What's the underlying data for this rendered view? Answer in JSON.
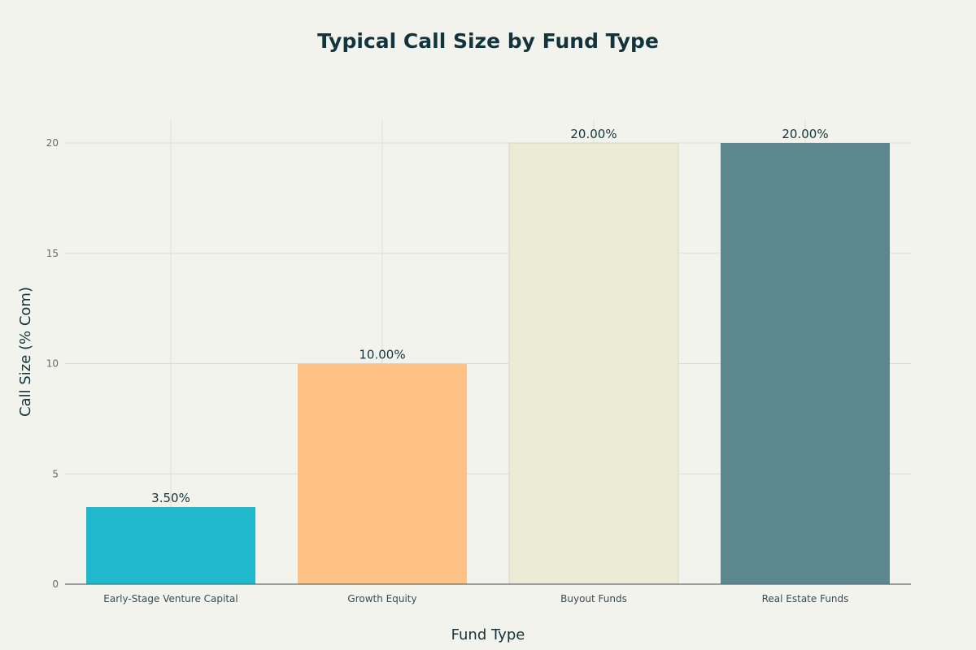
{
  "chart_data": {
    "type": "bar",
    "title": "Typical Call Size by Fund Type",
    "xlabel": "Fund Type",
    "ylabel": "Call Size (% Com)",
    "categories": [
      "Early-Stage Venture Capital",
      "Growth Equity",
      "Buyout Funds",
      "Real Estate Funds"
    ],
    "values": [
      3.5,
      10,
      20,
      20
    ],
    "data_labels": [
      "3.50%",
      "10.00%",
      "20.00%",
      "20.00%"
    ],
    "colors": [
      "#1fb8cd",
      "#ffc185",
      "#eceBd5",
      "#5d878f"
    ],
    "yticks": [
      0,
      5,
      10,
      15,
      20
    ],
    "ylim": [
      0,
      21
    ],
    "grid": true,
    "legend": "none"
  }
}
